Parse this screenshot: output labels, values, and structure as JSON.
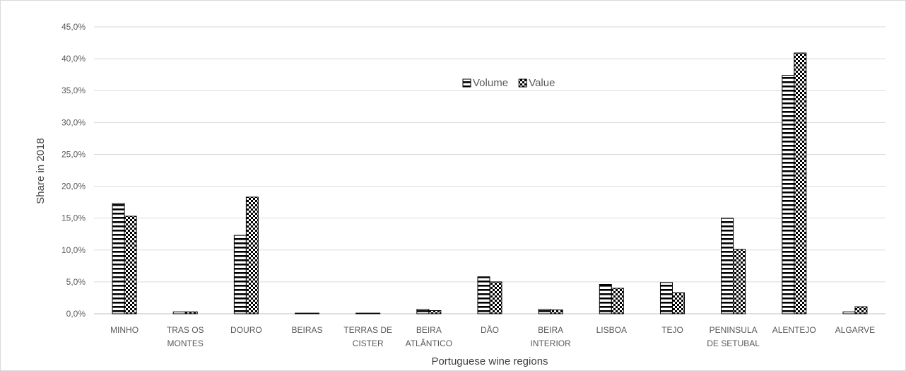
{
  "chart_data": {
    "type": "bar",
    "title": "",
    "xlabel": "Portuguese wine regions",
    "ylabel": "Share in 2018",
    "ylim": [
      0,
      45
    ],
    "yticks": [
      "0,0%",
      "5,0%",
      "10,0%",
      "15,0%",
      "20,0%",
      "25,0%",
      "30,0%",
      "35,0%",
      "40,0%",
      "45,0%"
    ],
    "grid": "horizontal",
    "legend_position": "top-center",
    "categories": [
      [
        "MINHO"
      ],
      [
        "TRAS OS",
        "MONTES"
      ],
      [
        "DOURO"
      ],
      [
        "BEIRAS"
      ],
      [
        "TERRAS DE",
        "CISTER"
      ],
      [
        "BEIRA",
        "ATLÂNTICO"
      ],
      [
        "DÃO"
      ],
      [
        "BEIRA",
        "INTERIOR"
      ],
      [
        "LISBOA"
      ],
      [
        "TEJO"
      ],
      [
        "PENINSULA",
        "DE SETUBAL"
      ],
      [
        "ALENTEJO"
      ],
      [
        "ALGARVE"
      ]
    ],
    "series": [
      {
        "name": "Volume",
        "pattern": "horizontal-stripes",
        "values": [
          17.3,
          0.3,
          12.3,
          0.1,
          0.1,
          0.7,
          5.8,
          0.7,
          4.6,
          4.9,
          15.0,
          37.4,
          0.3
        ]
      },
      {
        "name": "Value",
        "pattern": "checkerboard",
        "values": [
          15.3,
          0.3,
          18.3,
          0.1,
          0.1,
          0.5,
          5.0,
          0.6,
          4.0,
          3.3,
          10.1,
          40.9,
          1.1
        ]
      }
    ],
    "colors": {
      "gridline": "#d9d9d9",
      "bar_stroke": "#000000",
      "text": "#595959"
    }
  }
}
